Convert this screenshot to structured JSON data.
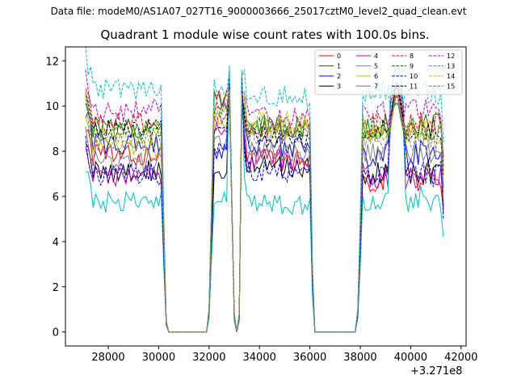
{
  "figure": {
    "suptitle": "Data file: modeM0/AS1A07_027T16_9000003666_25017cztM0_level2_quad_clean.evt",
    "offset_label": "+3.271e8"
  },
  "chart_data": {
    "type": "line",
    "title": "Quadrant 1 module wise count rates with 100.0s bins.",
    "xlabel": "",
    "ylabel": "",
    "x_offset": 327100000,
    "xlim": [
      26300,
      42200
    ],
    "ylim": [
      -0.62,
      12.62
    ],
    "xticks": [
      28000,
      30000,
      32000,
      34000,
      36000,
      38000,
      40000,
      42000
    ],
    "xtick_labels": [
      "28000",
      "30000",
      "32000",
      "34000",
      "36000",
      "38000",
      "40000",
      "42000"
    ],
    "yticks": [
      0,
      2,
      4,
      6,
      8,
      10,
      12
    ],
    "ytick_labels": [
      "0",
      "2",
      "4",
      "6",
      "8",
      "10",
      "12"
    ],
    "grid": false,
    "legend_position": "top-right",
    "segments": [
      [
        27100,
        30100
      ],
      [
        32100,
        32800
      ],
      [
        33300,
        36000
      ],
      [
        38100,
        41300
      ]
    ],
    "gaps": [
      {
        "x": [
          30100,
          30200,
          30300,
          30400
        ],
        "factor": [
          1.0,
          0.5,
          0.05,
          0.0
        ]
      },
      {
        "x": [
          31900,
          32000,
          32100
        ],
        "factor": [
          0.0,
          0.1,
          0.55
        ]
      },
      {
        "x": [
          32900,
          33000,
          33100,
          33200,
          33300
        ],
        "factor": [
          0.55,
          0.08,
          0.0,
          0.08,
          0.55
        ]
      },
      {
        "x": [
          36000,
          36100,
          36200
        ],
        "factor": [
          1.0,
          0.3,
          0.0
        ]
      },
      {
        "x": [
          37800,
          37900,
          38000,
          38100
        ],
        "factor": [
          0.0,
          0.1,
          0.5,
          0.95
        ]
      }
    ],
    "series": [
      {
        "name": "0",
        "color": "#ff0000",
        "dash": "solid",
        "levels": [
          7.8,
          10.4,
          7.6,
          6.8
        ],
        "peak": 10.6
      },
      {
        "name": "1",
        "color": "#008000",
        "dash": "solid",
        "levels": [
          9.0,
          10.3,
          9.1,
          9.2
        ],
        "peak": 10.5
      },
      {
        "name": "2",
        "color": "#0000ff",
        "dash": "solid",
        "levels": [
          8.3,
          8.0,
          8.2,
          7.9
        ],
        "peak": 10.9
      },
      {
        "name": "3",
        "color": "#000000",
        "dash": "solid",
        "levels": [
          7.1,
          7.1,
          7.3,
          7.1
        ],
        "peak": 10.8
      },
      {
        "name": "4",
        "color": "#bf00bf",
        "dash": "solid",
        "levels": [
          6.9,
          9.0,
          7.6,
          6.9
        ],
        "peak": 11.2
      },
      {
        "name": "5",
        "color": "#00bfbf",
        "dash": "solid",
        "levels": [
          5.7,
          6.0,
          5.6,
          5.9
        ],
        "peak": 11.8
      },
      {
        "name": "6",
        "color": "#bfbf00",
        "dash": "solid",
        "levels": [
          8.1,
          9.5,
          9.0,
          8.9
        ],
        "peak": 10.7
      },
      {
        "name": "7",
        "color": "#808080",
        "dash": "solid",
        "levels": [
          7.6,
          8.3,
          7.9,
          8.0
        ],
        "peak": 10.6
      },
      {
        "name": "8",
        "color": "#ff0000",
        "dash": "dashed",
        "levels": [
          9.2,
          9.4,
          8.9,
          9.2
        ],
        "peak": 10.9
      },
      {
        "name": "9",
        "color": "#008000",
        "dash": "dashed",
        "levels": [
          8.9,
          9.8,
          9.0,
          9.0
        ],
        "peak": 10.7
      },
      {
        "name": "10",
        "color": "#0000ff",
        "dash": "dashed",
        "levels": [
          7.0,
          8.3,
          7.1,
          7.0
        ],
        "peak": 11.5
      },
      {
        "name": "11",
        "color": "#000000",
        "dash": "dashed",
        "levels": [
          8.9,
          9.1,
          8.6,
          9.0
        ],
        "peak": 10.9
      },
      {
        "name": "12",
        "color": "#bf00bf",
        "dash": "dashed",
        "levels": [
          9.8,
          10.0,
          9.5,
          9.7
        ],
        "peak": 10.8
      },
      {
        "name": "13",
        "color": "#00bfbf",
        "dash": "dashed",
        "levels": [
          10.8,
          10.9,
          10.4,
          10.6
        ],
        "peak": 11.5
      },
      {
        "name": "14",
        "color": "#bfbf00",
        "dash": "dashed",
        "levels": [
          8.7,
          9.9,
          9.3,
          9.0
        ],
        "peak": 10.7
      },
      {
        "name": "15",
        "color": "#808080",
        "dash": "dashed",
        "levels": [
          8.5,
          9.4,
          8.8,
          8.6
        ],
        "peak": 10.6
      }
    ]
  }
}
